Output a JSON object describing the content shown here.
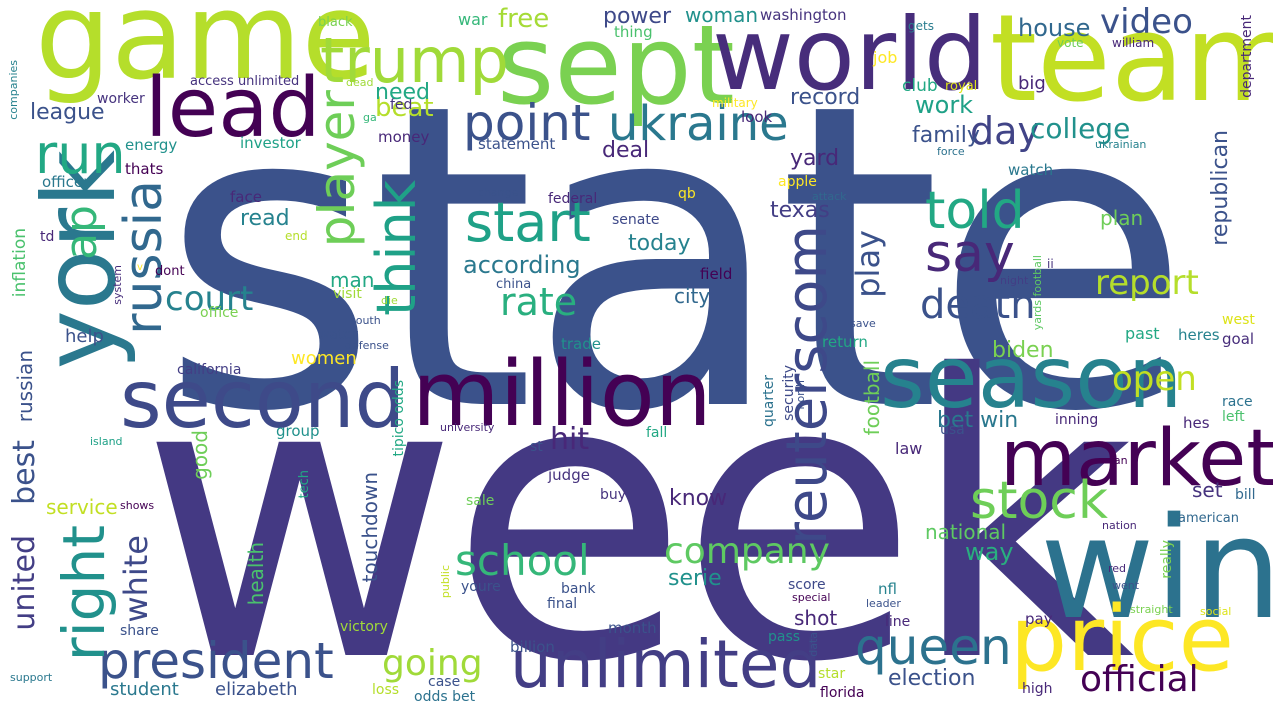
{
  "words": [
    {
      "text": "state",
      "color": "#3b528b"
    },
    {
      "text": "week",
      "color": "#443983"
    },
    {
      "text": "game",
      "color": "#b5de2b"
    },
    {
      "text": "sept",
      "color": "#7ad151"
    },
    {
      "text": "world",
      "color": "#472d7b"
    },
    {
      "text": "team",
      "color": "#c2df23"
    },
    {
      "text": "york",
      "color": "#2a788e"
    },
    {
      "text": "lead",
      "color": "#440154"
    },
    {
      "text": "trump",
      "color": "#a0da39"
    },
    {
      "text": "win",
      "color": "#2c728e"
    },
    {
      "text": "price",
      "color": "#fde725"
    },
    {
      "text": "season",
      "color": "#26828e"
    },
    {
      "text": "million",
      "color": "#440154"
    },
    {
      "text": "second",
      "color": "#3e4a89"
    },
    {
      "text": "market",
      "color": "#440154"
    },
    {
      "text": "unlimited",
      "color": "#433e85"
    },
    {
      "text": "president",
      "color": "#3b528b"
    },
    {
      "text": "reuterscom",
      "color": "#3e4989"
    },
    {
      "text": "right",
      "color": "#21918c"
    },
    {
      "text": "ukraine",
      "color": "#2a788e"
    },
    {
      "text": "point",
      "color": "#3b528b"
    },
    {
      "text": "run",
      "color": "#22a884"
    },
    {
      "text": "russia",
      "color": "#31688e"
    },
    {
      "text": "player",
      "color": "#6ece58"
    },
    {
      "text": "think",
      "color": "#1fa187"
    },
    {
      "text": "start",
      "color": "#1fa187"
    },
    {
      "text": "told",
      "color": "#22a884"
    },
    {
      "text": "say",
      "color": "#482878"
    },
    {
      "text": "queen",
      "color": "#2c728e"
    },
    {
      "text": "stock",
      "color": "#6ece58"
    },
    {
      "text": "video",
      "color": "#3b528b"
    },
    {
      "text": "day",
      "color": "#414487"
    },
    {
      "text": "ap",
      "color": "#35b779"
    },
    {
      "text": "company",
      "color": "#5ec962"
    },
    {
      "text": "school",
      "color": "#35b779"
    },
    {
      "text": "official",
      "color": "#440154"
    },
    {
      "text": "rate",
      "color": "#29af7f"
    },
    {
      "text": "death",
      "color": "#3b528b"
    },
    {
      "text": "report",
      "color": "#b5de2b"
    },
    {
      "text": "open",
      "color": "#c2df23"
    },
    {
      "text": "court",
      "color": "#26828e"
    },
    {
      "text": "going",
      "color": "#a0da39"
    },
    {
      "text": "college",
      "color": "#21918c"
    },
    {
      "text": "house",
      "color": "#31688e"
    },
    {
      "text": "hit",
      "color": "#482878"
    },
    {
      "text": "white",
      "color": "#3e4989"
    },
    {
      "text": "united",
      "color": "#433e85"
    },
    {
      "text": "best",
      "color": "#3b528b"
    },
    {
      "text": "play",
      "color": "#3b528b"
    },
    {
      "text": "beat",
      "color": "#b5de2b"
    },
    {
      "text": "free",
      "color": "#a5db36"
    },
    {
      "text": "power",
      "color": "#3e4989"
    },
    {
      "text": "woman",
      "color": "#21918c"
    },
    {
      "text": "washington",
      "color": "#46337e"
    },
    {
      "text": "war",
      "color": "#35b779"
    },
    {
      "text": "thing",
      "color": "#4ac16d"
    },
    {
      "text": "black",
      "color": "#7ad151"
    },
    {
      "text": "gets",
      "color": "#287c8e"
    },
    {
      "text": "vote",
      "color": "#6ece58"
    },
    {
      "text": "william",
      "color": "#482878"
    },
    {
      "text": "job",
      "color": "#fde725"
    },
    {
      "text": "big",
      "color": "#482878"
    },
    {
      "text": "royal",
      "color": "#dde318"
    },
    {
      "text": "club",
      "color": "#22a884"
    },
    {
      "text": "military",
      "color": "#fde725"
    },
    {
      "text": "fed",
      "color": "#46337e"
    },
    {
      "text": "need",
      "color": "#22a884"
    },
    {
      "text": "record",
      "color": "#3b528b"
    },
    {
      "text": "work",
      "color": "#1fa187"
    },
    {
      "text": "family",
      "color": "#3b528b"
    },
    {
      "text": "league",
      "color": "#3b528b"
    },
    {
      "text": "worker",
      "color": "#46337e"
    },
    {
      "text": "access unlimited",
      "color": "#46337e"
    },
    {
      "text": "dead",
      "color": "#a0da39"
    },
    {
      "text": "ga",
      "color": "#35b779"
    },
    {
      "text": "money",
      "color": "#482878"
    },
    {
      "text": "deal",
      "color": "#482878"
    },
    {
      "text": "statement",
      "color": "#3b528b"
    },
    {
      "text": "energy",
      "color": "#21918c"
    },
    {
      "text": "investor",
      "color": "#1fa187"
    },
    {
      "text": "officer",
      "color": "#2a788e"
    },
    {
      "text": "thats",
      "color": "#440154"
    },
    {
      "text": "yard",
      "color": "#482878"
    },
    {
      "text": "apple",
      "color": "#fde725"
    },
    {
      "text": "watch",
      "color": "#2a788e"
    },
    {
      "text": "force",
      "color": "#2c728e"
    },
    {
      "text": "ukrainian",
      "color": "#26828e"
    },
    {
      "text": "today",
      "color": "#26828e"
    },
    {
      "text": "texas",
      "color": "#433e85"
    },
    {
      "text": "according",
      "color": "#2a788e"
    },
    {
      "text": "plan",
      "color": "#6ece58"
    },
    {
      "text": "republican",
      "color": "#3b528b"
    },
    {
      "text": "face",
      "color": "#482878"
    },
    {
      "text": "read",
      "color": "#26828e"
    },
    {
      "text": "man",
      "color": "#22a884"
    },
    {
      "text": "change",
      "color": "#3b528b"
    },
    {
      "text": "federal",
      "color": "#482878"
    },
    {
      "text": "qb",
      "color": "#fde725"
    },
    {
      "text": "attack",
      "color": "#31688e"
    },
    {
      "text": "senate",
      "color": "#3e4989"
    },
    {
      "text": "field",
      "color": "#440154"
    },
    {
      "text": "china",
      "color": "#3b528b"
    },
    {
      "text": "city",
      "color": "#31688e"
    },
    {
      "text": "inflation",
      "color": "#4ac16d"
    },
    {
      "text": "td",
      "color": "#482878"
    },
    {
      "text": "dont",
      "color": "#440154"
    },
    {
      "text": "end",
      "color": "#b5de2b"
    },
    {
      "text": "visit",
      "color": "#a0da39"
    },
    {
      "text": "office",
      "color": "#7ad151"
    },
    {
      "text": "help",
      "color": "#3b528b"
    },
    {
      "text": "russian",
      "color": "#3b528b"
    },
    {
      "text": "system",
      "color": "#472d7b"
    },
    {
      "text": "v",
      "color": "#fde725"
    },
    {
      "text": "die",
      "color": "#a0da39"
    },
    {
      "text": "south",
      "color": "#3b528b"
    },
    {
      "text": "defense",
      "color": "#3b528b"
    },
    {
      "text": "water",
      "color": "#3b528b"
    },
    {
      "text": "women",
      "color": "#fde725"
    },
    {
      "text": "california",
      "color": "#433e85"
    },
    {
      "text": "trade",
      "color": "#21918c"
    },
    {
      "text": "return",
      "color": "#22a884"
    },
    {
      "text": "save",
      "color": "#3b528b"
    },
    {
      "text": "night",
      "color": "#433e85"
    },
    {
      "text": "football",
      "color": "#6ece58"
    },
    {
      "text": "yards football",
      "color": "#5ec962"
    },
    {
      "text": "ii",
      "color": "#46337e"
    },
    {
      "text": "past",
      "color": "#22a884"
    },
    {
      "text": "heres",
      "color": "#26828e"
    },
    {
      "text": "west",
      "color": "#dde318"
    },
    {
      "text": "goal",
      "color": "#472d7b"
    },
    {
      "text": "biden",
      "color": "#7ad151"
    },
    {
      "text": "tipico odds",
      "color": "#22a884"
    },
    {
      "text": "group",
      "color": "#21918c"
    },
    {
      "text": "university",
      "color": "#482878"
    },
    {
      "text": "st",
      "color": "#3b528b"
    },
    {
      "text": "fall",
      "color": "#22a884"
    },
    {
      "text": "quarter",
      "color": "#2c728e"
    },
    {
      "text": "security",
      "color": "#3e4a89"
    },
    {
      "text": "north",
      "color": "#3b528b"
    },
    {
      "text": "bet win",
      "color": "#2a788e"
    },
    {
      "text": "usa",
      "color": "#3b528b"
    },
    {
      "text": "inning",
      "color": "#482878"
    },
    {
      "text": "race",
      "color": "#2c728e"
    },
    {
      "text": "left",
      "color": "#4ac16d"
    },
    {
      "text": "hes",
      "color": "#482878"
    },
    {
      "text": "island",
      "color": "#1fa187"
    },
    {
      "text": "tech",
      "color": "#22a884"
    },
    {
      "text": "judge",
      "color": "#46337e"
    },
    {
      "text": "law",
      "color": "#482878"
    },
    {
      "text": "fan",
      "color": "#440154"
    },
    {
      "text": "know",
      "color": "#482878"
    },
    {
      "text": "buy",
      "color": "#46337e"
    },
    {
      "text": "set",
      "color": "#46337e"
    },
    {
      "text": "bill",
      "color": "#31688e"
    },
    {
      "text": "service",
      "color": "#c2df23"
    },
    {
      "text": "shows",
      "color": "#440154"
    },
    {
      "text": "sale",
      "color": "#6ece58"
    },
    {
      "text": "national",
      "color": "#5ec962"
    },
    {
      "text": "nation",
      "color": "#482878"
    },
    {
      "text": "american",
      "color": "#31688e"
    },
    {
      "text": "touchdown",
      "color": "#3b528b"
    },
    {
      "text": "way",
      "color": "#29af7f"
    },
    {
      "text": "health",
      "color": "#4ac16d"
    },
    {
      "text": "public",
      "color": "#c2df23"
    },
    {
      "text": "youre",
      "color": "#3b528b"
    },
    {
      "text": "bank",
      "color": "#3b528b"
    },
    {
      "text": "serie",
      "color": "#21918c"
    },
    {
      "text": "score",
      "color": "#3e4989"
    },
    {
      "text": "special",
      "color": "#440154"
    },
    {
      "text": "nfl",
      "color": "#26828e"
    },
    {
      "text": "leader",
      "color": "#3b528b"
    },
    {
      "text": "went",
      "color": "#3b528b"
    },
    {
      "text": "red",
      "color": "#482878"
    },
    {
      "text": "straight",
      "color": "#7ad151"
    },
    {
      "text": "social",
      "color": "#dde318"
    },
    {
      "text": "really",
      "color": "#7ad151"
    },
    {
      "text": "shot",
      "color": "#482878"
    },
    {
      "text": "final",
      "color": "#3b528b"
    },
    {
      "text": "pay",
      "color": "#482878"
    },
    {
      "text": "share",
      "color": "#3b528b"
    },
    {
      "text": "victory",
      "color": "#a0da39"
    },
    {
      "text": "month",
      "color": "#3b528b"
    },
    {
      "text": "line",
      "color": "#482878"
    },
    {
      "text": "pass",
      "color": "#21918c"
    },
    {
      "text": "data",
      "color": "#3b528b"
    },
    {
      "text": "billion",
      "color": "#3b528b"
    },
    {
      "text": "case",
      "color": "#3b528b"
    },
    {
      "text": "star",
      "color": "#b5de2b"
    },
    {
      "text": "student",
      "color": "#2a788e"
    },
    {
      "text": "elizabeth",
      "color": "#3b528b"
    },
    {
      "text": "loss",
      "color": "#b5de2b"
    },
    {
      "text": "odds bet",
      "color": "#2c728e"
    },
    {
      "text": "election",
      "color": "#3b528b"
    },
    {
      "text": "florida",
      "color": "#440154"
    },
    {
      "text": "high",
      "color": "#482878"
    },
    {
      "text": "support",
      "color": "#2a788e"
    },
    {
      "text": "good",
      "color": "#6ece58"
    },
    {
      "text": "look",
      "color": "#482878"
    },
    {
      "text": "companies",
      "color": "#26828e"
    },
    {
      "text": "department",
      "color": "#482878"
    }
  ]
}
